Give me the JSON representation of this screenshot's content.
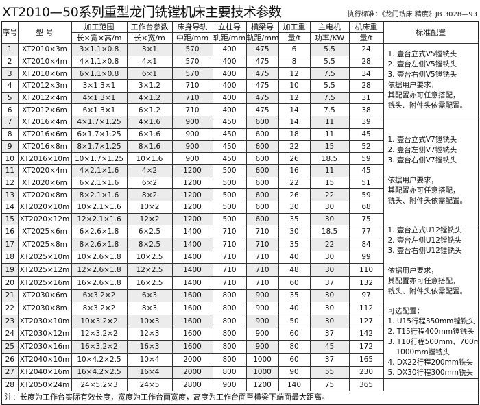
{
  "title": "XT2010—50系列重型龙门铣镗机床主要技术参数",
  "standard": "执行标准：《龙门铣床  精度》JB 3028—93",
  "headers": {
    "seq": "序号",
    "model": "型 号",
    "range": "加工范围",
    "range_sub": "长×宽×高/m",
    "table": "工作台参数",
    "table_sub": "长×宽/m",
    "bed": "床身导轨",
    "bed_sub": "中距/mm",
    "column": "立柱导",
    "column_sub": "轨距/mm",
    "beam": "横梁导",
    "beam_sub": "轨距/mm",
    "load": "加工重",
    "load_sub": "量/t",
    "motor": "主电机",
    "motor_sub": "功率/KW",
    "weight": "机床重",
    "weight_sub": "量/t",
    "config": "标准配置"
  },
  "rows": [
    [
      "1",
      "XT2010×3m",
      "3×1.1×0.8",
      "3×1",
      "570",
      "400",
      "475",
      "6",
      "5.5",
      "24"
    ],
    [
      "2",
      "XT2010×4m",
      "4×1.1×0.8",
      "4×1",
      "570",
      "400",
      "475",
      "8",
      "5.5",
      "28"
    ],
    [
      "3",
      "XT2010×6m",
      "6×1.1×0.8",
      "6×1",
      "570",
      "400",
      "475",
      "12",
      "7.5",
      "34"
    ],
    [
      "4",
      "XT2012×3m",
      "3×1.3×1",
      "3×1.2",
      "710",
      "400",
      "475",
      "10",
      "5.5",
      "28"
    ],
    [
      "5",
      "XT2012×4m",
      "4×1.3×1",
      "4×1.2",
      "710",
      "400",
      "475",
      "12",
      "7.5",
      "31"
    ],
    [
      "6",
      "XT2012×6m",
      "6×1.3×1",
      "6×1.2",
      "710",
      "400",
      "475",
      "14",
      "7.5",
      "38"
    ],
    [
      "7",
      "XT2016×4m",
      "4×1.7×1.25",
      "4×1.6",
      "900",
      "450",
      "600",
      "14",
      "11",
      "39"
    ],
    [
      "8",
      "XT2016×6m",
      "6×1.7×1.25",
      "6×1.6",
      "900",
      "450",
      "600",
      "18",
      "11",
      "45"
    ],
    [
      "9",
      "XT2016×8m",
      "8×1.7×1.25",
      "8×1.6",
      "900",
      "450",
      "600",
      "22",
      "15",
      "52"
    ],
    [
      "10",
      "XT2016×10m",
      "10×1.7×1.25",
      "10×1.6",
      "900",
      "450",
      "600",
      "26",
      "18.5",
      "59"
    ],
    [
      "11",
      "XT2020×4m",
      "4×2.1×1.6",
      "4×2",
      "1200",
      "500",
      "600",
      "16",
      "11",
      "45"
    ],
    [
      "12",
      "XT2020×6m",
      "6×2.1×1.6",
      "6×2",
      "1200",
      "500",
      "600",
      "22",
      "15",
      "51"
    ],
    [
      "13",
      "XT2020×8m",
      "8×2.1×1.6",
      "8×2",
      "1200",
      "500",
      "600",
      "26",
      "22",
      "59"
    ],
    [
      "14",
      "XT2020×10m",
      "10×2.1×1.6",
      "10×2",
      "1200",
      "500",
      "600",
      "30",
      "30",
      "68"
    ],
    [
      "15",
      "XT2020×12m",
      "12×2.1×1.6",
      "12×2",
      "1200",
      "500",
      "600",
      "35",
      "30",
      "75"
    ],
    [
      "16",
      "XT2025×6m",
      "6×2.6×1.8",
      "6×2.5",
      "1400",
      "710",
      "710",
      "30",
      "18.5",
      "77"
    ],
    [
      "17",
      "XT2025×8m",
      "8×2.6×1.8",
      "8×2.5",
      "1400",
      "710",
      "710",
      "35",
      "22",
      "84"
    ],
    [
      "18",
      "XT2025×10m",
      "10×2.6×1.8",
      "10×2.5",
      "1400",
      "710",
      "710",
      "40",
      "30",
      "99"
    ],
    [
      "19",
      "XT2025×12m",
      "12×2.6×1.8",
      "12×2.5",
      "1400",
      "710",
      "710",
      "48",
      "30",
      "110"
    ],
    [
      "20",
      "XT2025×16m",
      "16×2.6×1.8",
      "16×2.5",
      "1400",
      "710",
      "710",
      "60",
      "37",
      "132"
    ],
    [
      "21",
      "XT2030×6m",
      "6×3.2×2",
      "6×3",
      "1600",
      "800",
      "900",
      "35",
      "30",
      "97"
    ],
    [
      "22",
      "XT2030×8m",
      "8×3.2×2",
      "8×3",
      "1600",
      "800",
      "900",
      "40",
      "30",
      "112"
    ],
    [
      "23",
      "XT2030×10m",
      "10×3.2×2",
      "10×3",
      "1600",
      "800",
      "900",
      "50",
      "30",
      "127"
    ],
    [
      "24",
      "XT2030×12m",
      "12×3.2×2",
      "12×3",
      "1600",
      "800",
      "900",
      "60",
      "37",
      "142"
    ],
    [
      "25",
      "XT2030×16m",
      "16×3.2×2",
      "16×3",
      "1600",
      "800",
      "900",
      "80",
      "45",
      "172"
    ],
    [
      "26",
      "XT2040×10m",
      "10×4.2×2.5",
      "10×4",
      "2000",
      "800",
      "1000",
      "60",
      "37",
      "165"
    ],
    [
      "27",
      "XT2040×16m",
      "16×4.2×2.5",
      "16×4",
      "2000",
      "800",
      "1000",
      "90",
      "55",
      "230"
    ],
    [
      "28",
      "XT2050×24m",
      "24×5.2×3",
      "24×5",
      "2800",
      "900",
      "1200",
      "140",
      "75",
      "365"
    ]
  ],
  "config_groups": [
    {
      "rows": 6,
      "lines": [
        "1. 壹台立式V5镗铣头",
        "2. 壹台左侧V5镗铣头",
        "3. 壹台右侧V5镗铣头",
        "依据用户要求，",
        "其配置亦可任意搭配，",
        "铣头、附件头依需配置。"
      ]
    },
    {
      "rows": 9,
      "lines": [
        "1. 壹台立式V7镗铣头",
        "2. 壹台左侧V7镗铣头",
        "3. 壹台右侧V7镗铣头",
        "",
        "依据用户要求，",
        "其配置亦可任意搭配，",
        "铣头、附件头依需配置。"
      ]
    },
    {
      "rows": 12,
      "lines": [
        "1. 壹台立式U12镗铣头",
        "2. 壹台左侧U12镗铣头",
        "3. 壹台右侧U12镗铣头",
        "",
        "依据用户要求，",
        "其配置亦可任意搭配，",
        "铣头、附件头依需配置。",
        "",
        "可选配置：",
        "1. U15行程350mm镗铣头",
        "2. T15行程400mm镗铣头",
        "3. T10行程500mm、700mm、",
        "    1000mm镗铣头",
        "4. DX22行程200mm铣头",
        "5. DX30行程300mm铣头"
      ]
    },
    {
      "rows": 1,
      "lines": [
        ""
      ]
    }
  ],
  "note": "注：长度为工作台实际有效长度，宽度为工作台面宽度，高度为工作台面至横梁下端面最大距离。"
}
